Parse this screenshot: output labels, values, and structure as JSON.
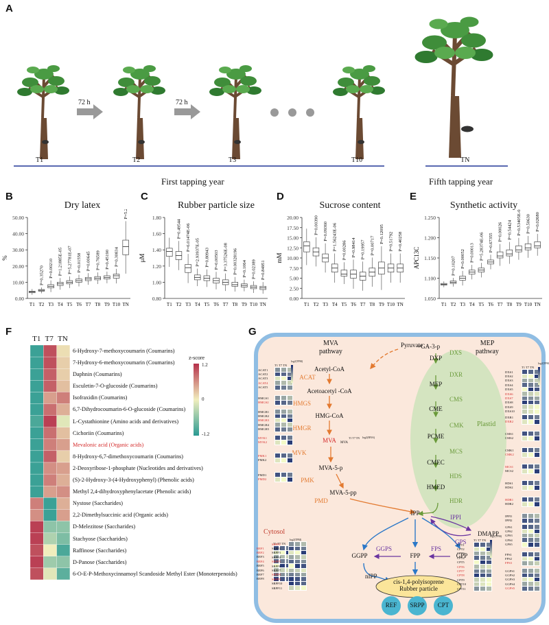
{
  "panels": {
    "a": "A",
    "b": "B",
    "c": "C",
    "d": "D",
    "e": "E",
    "f": "F",
    "g": "G"
  },
  "panel_a": {
    "trees": [
      "T1",
      "T2",
      "T3",
      "T10",
      "TN"
    ],
    "arrows": [
      "72 h",
      "72 h"
    ],
    "first_year": "First tapping year",
    "fifth_year": "Fifth tapping year"
  },
  "chart_data": [
    {
      "type": "box",
      "title": "Dry latex",
      "ylabel": "%",
      "ylim": [
        0,
        50
      ],
      "yticks": [
        "0.00",
        "10.00",
        "20.00",
        "30.00",
        "40.00",
        "50.00"
      ],
      "categories": [
        "T1",
        "T2",
        "T3",
        "T4",
        "T5",
        "T6",
        "T7",
        "T8",
        "T9",
        "T10",
        "TN"
      ],
      "medians": [
        4,
        5,
        7.5,
        9,
        10,
        11,
        12,
        12.5,
        13,
        14,
        32
      ],
      "q1": [
        3.5,
        4.5,
        6.5,
        8,
        9,
        10,
        11,
        11.5,
        12,
        12.5,
        27
      ],
      "q3": [
        4.5,
        5.5,
        8.5,
        10,
        11,
        12,
        13,
        13.5,
        14,
        15,
        36
      ],
      "pvalues": [
        "",
        "P=0.35270",
        "P=0.00210",
        "P=1.21885E-05",
        "P=5.27781E-07",
        "P=0.01558",
        "P=0.00645",
        "P=0.76589",
        "P=0.45190",
        "P=0.30834",
        "P=5.2393E-11"
      ]
    },
    {
      "type": "box",
      "title": "Rubber particle size",
      "ylabel": "μM",
      "ylim": [
        0.8,
        1.8
      ],
      "yticks": [
        "0.80",
        "1.00",
        "1.20",
        "1.40",
        "1.60",
        "1.80"
      ],
      "categories": [
        "T1",
        "T2",
        "T3",
        "T4",
        "T5",
        "T6",
        "T7",
        "T8",
        "T9",
        "T10",
        "TN"
      ],
      "medians": [
        1.38,
        1.33,
        1.18,
        1.06,
        1.05,
        1.02,
        1.0,
        0.97,
        0.96,
        0.94,
        0.93
      ],
      "q1": [
        1.32,
        1.28,
        1.12,
        1.03,
        1.02,
        0.99,
        0.97,
        0.95,
        0.94,
        0.92,
        0.91
      ],
      "q3": [
        1.42,
        1.38,
        1.22,
        1.09,
        1.08,
        1.05,
        1.03,
        1.0,
        0.98,
        0.96,
        0.95
      ],
      "pvalues": [
        "",
        "P=0.49544",
        "P=6.01474E-06",
        "P=2.93937E-05",
        "P=0.80943",
        "P=0.00503",
        "P=3.37526E-08",
        "P=0.00328196",
        "P=0.1064",
        "P=0.02389",
        "P=0.84951"
      ]
    },
    {
      "type": "box",
      "title": "Sucrose content",
      "ylabel": "mM",
      "ylim": [
        0,
        20
      ],
      "yticks": [
        "0.00",
        "2.50",
        "5.00",
        "7.50",
        "10.00",
        "12.50",
        "15.00",
        "17.50",
        "20.00"
      ],
      "categories": [
        "T1",
        "T2",
        "T3",
        "T4",
        "T5",
        "T6",
        "T7",
        "T8",
        "T9",
        "T10",
        "TN"
      ],
      "medians": [
        13,
        11.5,
        10,
        7.5,
        6,
        6,
        5.5,
        6.5,
        7.5,
        7.5,
        7.5
      ],
      "q1": [
        11.5,
        10.5,
        9,
        6.5,
        5.5,
        5,
        4.5,
        5.5,
        6,
        6.5,
        6.5
      ],
      "q3": [
        14,
        12.5,
        11,
        8.5,
        7,
        7,
        6.5,
        7.5,
        9,
        8.5,
        8.5
      ],
      "pvalues": [
        "",
        "P=0.00390",
        "P=0.09360",
        "P=1.56243E-06",
        "P=0.00286",
        "P=0.98414",
        "P=0.19957",
        "P=0.00717",
        "P=0.12095",
        "P=0.51792",
        "P=0.40258"
      ]
    },
    {
      "type": "box",
      "title": "Synthetic activity",
      "ylabel": "APC13C",
      "ylim": [
        1.05,
        1.25
      ],
      "yticks": [
        "1.050",
        "1.100",
        "1.150",
        "1.200",
        "1.250"
      ],
      "categories": [
        "T1",
        "T2",
        "T3",
        "T4",
        "T5",
        "T6",
        "T7",
        "T8",
        "T9",
        "T10",
        "TN"
      ],
      "medians": [
        1.085,
        1.09,
        1.1,
        1.115,
        1.12,
        1.14,
        1.155,
        1.16,
        1.17,
        1.175,
        1.18
      ],
      "q1": [
        1.083,
        1.087,
        1.095,
        1.11,
        1.115,
        1.135,
        1.15,
        1.155,
        1.165,
        1.17,
        1.175
      ],
      "q3": [
        1.087,
        1.093,
        1.105,
        1.12,
        1.125,
        1.145,
        1.165,
        1.17,
        1.18,
        1.185,
        1.19
      ],
      "pvalues": [
        "",
        "P=0.10207",
        "P=0.00052",
        "P=0.00013",
        "P=5.28374E-06",
        "P=0.67355",
        "P=0.00026",
        "P=0.54424",
        "P=0.53405E-05",
        "P=0.50630",
        "P=0.02680"
      ]
    }
  ],
  "heatmap": {
    "columns": [
      "T1",
      "T7",
      "TN"
    ],
    "legend_title": "z-score",
    "legend_ticks": [
      "1.2",
      "0",
      "-1.2"
    ],
    "rows": [
      {
        "label": "6-Hydroxy-7-methoxycoumarin (Coumarins)",
        "values": [
          -1.1,
          1.0,
          0.1
        ],
        "red": false
      },
      {
        "label": "7-Hydroxy-6-methoxycoumarin (Coumarins)",
        "values": [
          -1.1,
          1.0,
          0.2
        ],
        "red": false
      },
      {
        "label": "Daphnin (Coumarins)",
        "values": [
          -1.1,
          0.9,
          0.2
        ],
        "red": false
      },
      {
        "label": "Esculetin-7-O-glucoside (Coumarins)",
        "values": [
          -1.1,
          0.9,
          0.3
        ],
        "red": false
      },
      {
        "label": "Isofraxidin (Coumarins)",
        "values": [
          -1.1,
          0.5,
          0.7
        ],
        "red": false
      },
      {
        "label": "6,7-Dihydrocoumarin-6-O-glucoside (Coumarins)",
        "values": [
          -1.1,
          0.8,
          0.4
        ],
        "red": false
      },
      {
        "label": "L-Cystathionine (Amino acids and derivatives)",
        "values": [
          -1.0,
          1.1,
          -0.1
        ],
        "red": false
      },
      {
        "label": "Cichoriin (Coumarins)",
        "values": [
          -1.1,
          0.8,
          0.3
        ],
        "red": false
      },
      {
        "label": "Mevalonic acid (Organic acids)",
        "values": [
          -1.1,
          0.7,
          0.5
        ],
        "red": true
      },
      {
        "label": "8-Hydroxy-6,7-dimethoxycoumarin (Coumarins)",
        "values": [
          -1.1,
          0.9,
          0.2
        ],
        "red": false
      },
      {
        "label": "2-Deoxyribose-1-phosphate (Nucleotides and derivatives)",
        "values": [
          -1.1,
          0.6,
          0.5
        ],
        "red": false
      },
      {
        "label": "(S)-2-Hydroxy-3-(4-Hydroxyphenyl) (Phenolic acids)",
        "values": [
          -1.1,
          0.7,
          0.4
        ],
        "red": false
      },
      {
        "label": "Methyl 2,4-dihydroxyphenylacetate (Phenolic acids)",
        "values": [
          -1.1,
          0.5,
          0.6
        ],
        "red": false
      },
      {
        "label": "Nystose (Saccharides)",
        "values": [
          0.7,
          -1.1,
          0.4
        ],
        "red": false
      },
      {
        "label": "2,2-Dimethylsuccinic acid (Organic acids)",
        "values": [
          0.6,
          -1.1,
          0.5
        ],
        "red": false
      },
      {
        "label": "D-Melezitose (Saccharides)",
        "values": [
          1.1,
          -0.6,
          -0.6
        ],
        "red": false
      },
      {
        "label": "Stachyose (Saccharides)",
        "values": [
          1.1,
          -0.4,
          -0.7
        ],
        "red": false
      },
      {
        "label": "Raffinose (Saccharides)",
        "values": [
          1.0,
          0.0,
          -1.0
        ],
        "red": false
      },
      {
        "label": "D-Panose (Saccharides)",
        "values": [
          1.1,
          -0.5,
          -0.6
        ],
        "red": false
      },
      {
        "label": "6-O-E-P-Methoxycinnamoyl Scandoside Methyl Ester (Monoterpenoids)",
        "values": [
          1.0,
          -0.1,
          -0.9
        ],
        "red": false
      }
    ]
  },
  "pathway": {
    "mva_title": "MVA\npathway",
    "mep_title": "MEP\npathway",
    "cytosol": "Cytosol",
    "plastid": "Plastid",
    "pyruvate": "Pyruvate",
    "ga3p": "+GA-3-p",
    "mva_nodes": [
      "Acetyl-CoA",
      "Acetoacetyl -CoA",
      "HMG-CoA",
      "MVA",
      "MVA-5-p",
      "MVA-5-pp"
    ],
    "mva_enzymes": [
      "ACAT",
      "HMGS",
      "HMGR",
      "MVK",
      "PMK",
      "PMD"
    ],
    "mep_nodes": [
      "DXP",
      "MEP",
      "CME",
      "PCME",
      "CMEC",
      "HMED"
    ],
    "mep_enzymes": [
      "DXS",
      "DXR",
      "CMS",
      "CMK",
      "MCS",
      "HDS",
      "HDR"
    ],
    "core": {
      "ipp": "IPP",
      "dmapp": "DMAPP",
      "ippi": "IPPI",
      "ggpp": "GGPP",
      "fpp": "FPP",
      "gpp": "GPP",
      "ggps": "GGPS",
      "fps": "FPS",
      "gps": "GPS",
      "nipp": "nIPP"
    },
    "rubber": "cis-1,4-polyisoprene\nRubber particle",
    "proteins": [
      "REF",
      "SRPP",
      "CPT"
    ],
    "log_label": "log2(TPM)",
    "hm_cols": "T1 T7 TN",
    "gene_blocks": {
      "acat": [
        "ACAT1",
        "ACAT2",
        "ACAT3",
        "ACAT4",
        "ACAT5"
      ],
      "hmgs": [
        "HMGS1",
        "HMGS2"
      ],
      "hmgr": [
        "HMGR1",
        "HMGR2",
        "HMGR3",
        "HMGR4",
        "HMGR5"
      ],
      "mvk": [
        "MVK1",
        "MVK2"
      ],
      "pmk": [
        "PMK1",
        "PMK2"
      ],
      "pmd": [
        "PMD1",
        "PMD2"
      ],
      "ref": [
        "REF1",
        "REF2",
        "REF3",
        "REF4",
        "REF5",
        "REF6",
        "REF7",
        "REF8"
      ],
      "srpp": [
        "SRPP1",
        "SRPP2",
        "SRPP3",
        "SRPP4",
        "SRPP5",
        "SRPP6",
        "SRPP7",
        "SRPP8",
        "SRPP9",
        "SRPP10",
        "SRPP11"
      ],
      "dxs": [
        "DXS1",
        "DXS2",
        "DXS3",
        "DXS4",
        "DXS5",
        "DXS6",
        "DXS7",
        "DXS8",
        "DXS9",
        "DXS10"
      ],
      "dxr": [
        "DXR1",
        "DXR2"
      ],
      "cms": [
        "CMS1",
        "CMS2"
      ],
      "cmk": [
        "CMK1",
        "CMK2"
      ],
      "mcs": [
        "MCS1",
        "MCS2"
      ],
      "hds": [
        "HDS1",
        "HDS2"
      ],
      "hdr": [
        "HDR1",
        "HDR2"
      ],
      "ippi": [
        "IPPI1",
        "IPPI2"
      ],
      "gps": [
        "GPS1",
        "GPS2",
        "GPS3",
        "GPS4",
        "GPS5"
      ],
      "fps": [
        "FPS1",
        "FPS2",
        "FPS3"
      ],
      "ggps": [
        "GGPS1",
        "GGPS2",
        "GGPS3",
        "GGPS4",
        "GGPS5"
      ],
      "cpt": [
        "CPT1",
        "CPT2",
        "CPT3",
        "CPT4",
        "CPT5",
        "CPT6",
        "CPT7",
        "CPT8",
        "CPT9",
        "CPT10",
        "CPT11"
      ]
    },
    "mva_mini": "MVA",
    "mva_mini_cols": "T1 T7 TN",
    "mva_mini_log": "log2(RNA)"
  }
}
